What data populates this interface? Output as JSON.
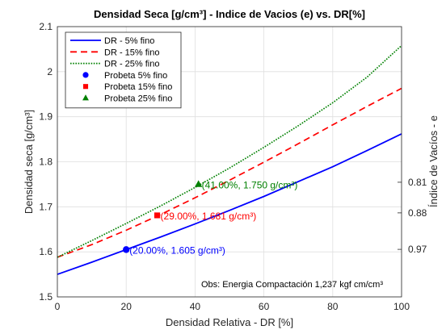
{
  "chart_data": {
    "type": "line",
    "title": "Densidad Seca [g/cm³] - Indice de Vacios (e) vs. DR[%]",
    "xlabel": "Densidad Relativa - DR [%]",
    "ylabel": "Densidad seca [g/cm³]",
    "y2label": "Índice de Vacíos - e",
    "xlim": [
      0,
      100
    ],
    "ylim": [
      1.5,
      2.1
    ],
    "xticks": [
      "0",
      "20",
      "40",
      "60",
      "80",
      "100"
    ],
    "yticks": [
      "1.5",
      "1.6",
      "1.7",
      "1.8",
      "1.9",
      "2",
      "2.1"
    ],
    "y2ticks": [
      {
        "label": "0.81",
        "at": 1.7545
      },
      {
        "label": "0.88",
        "at": 1.6865
      },
      {
        "label": "0.97",
        "at": 1.6055
      }
    ],
    "grid": true,
    "legend_position": "top-left",
    "series": [
      {
        "name": "DR - 5% fino",
        "color": "#0000ff",
        "dash": "solid",
        "x": [
          0,
          10,
          20,
          30,
          40,
          50,
          60,
          70,
          80,
          90,
          100
        ],
        "y": [
          1.55,
          1.577,
          1.605,
          1.633,
          1.662,
          1.692,
          1.723,
          1.756,
          1.789,
          1.825,
          1.862
        ]
      },
      {
        "name": "DR - 15% fino",
        "color": "#ff0000",
        "dash": "dashed",
        "x": [
          0,
          10,
          20,
          30,
          40,
          50,
          60,
          70,
          80,
          90,
          100
        ],
        "y": [
          1.588,
          1.616,
          1.648,
          1.683,
          1.72,
          1.759,
          1.799,
          1.84,
          1.882,
          1.923,
          1.963
        ]
      },
      {
        "name": "DR - 25% fino",
        "color": "#008000",
        "dash": "dotted",
        "x": [
          0,
          10,
          20,
          30,
          40,
          50,
          60,
          70,
          80,
          90,
          100
        ],
        "y": [
          1.588,
          1.625,
          1.663,
          1.702,
          1.743,
          1.786,
          1.832,
          1.88,
          1.931,
          1.988,
          2.058
        ]
      }
    ],
    "points": [
      {
        "name": "Probeta 5% fino",
        "marker": "circle",
        "color": "#0000ff",
        "x": 20,
        "y": 1.605,
        "label": "(20.00%, 1.605 g/cm³)"
      },
      {
        "name": "Probeta 15% fino",
        "marker": "square",
        "color": "#ff0000",
        "x": 29,
        "y": 1.681,
        "label": "(29.00%, 1.681 g/cm³)"
      },
      {
        "name": "Probeta 25% fino",
        "marker": "triangle",
        "color": "#008000",
        "x": 41,
        "y": 1.75,
        "label": "(41.00%, 1.750 g/cm³)"
      }
    ],
    "note": "Obs: Energia Compactación 1,237 kgf cm/cm³"
  }
}
